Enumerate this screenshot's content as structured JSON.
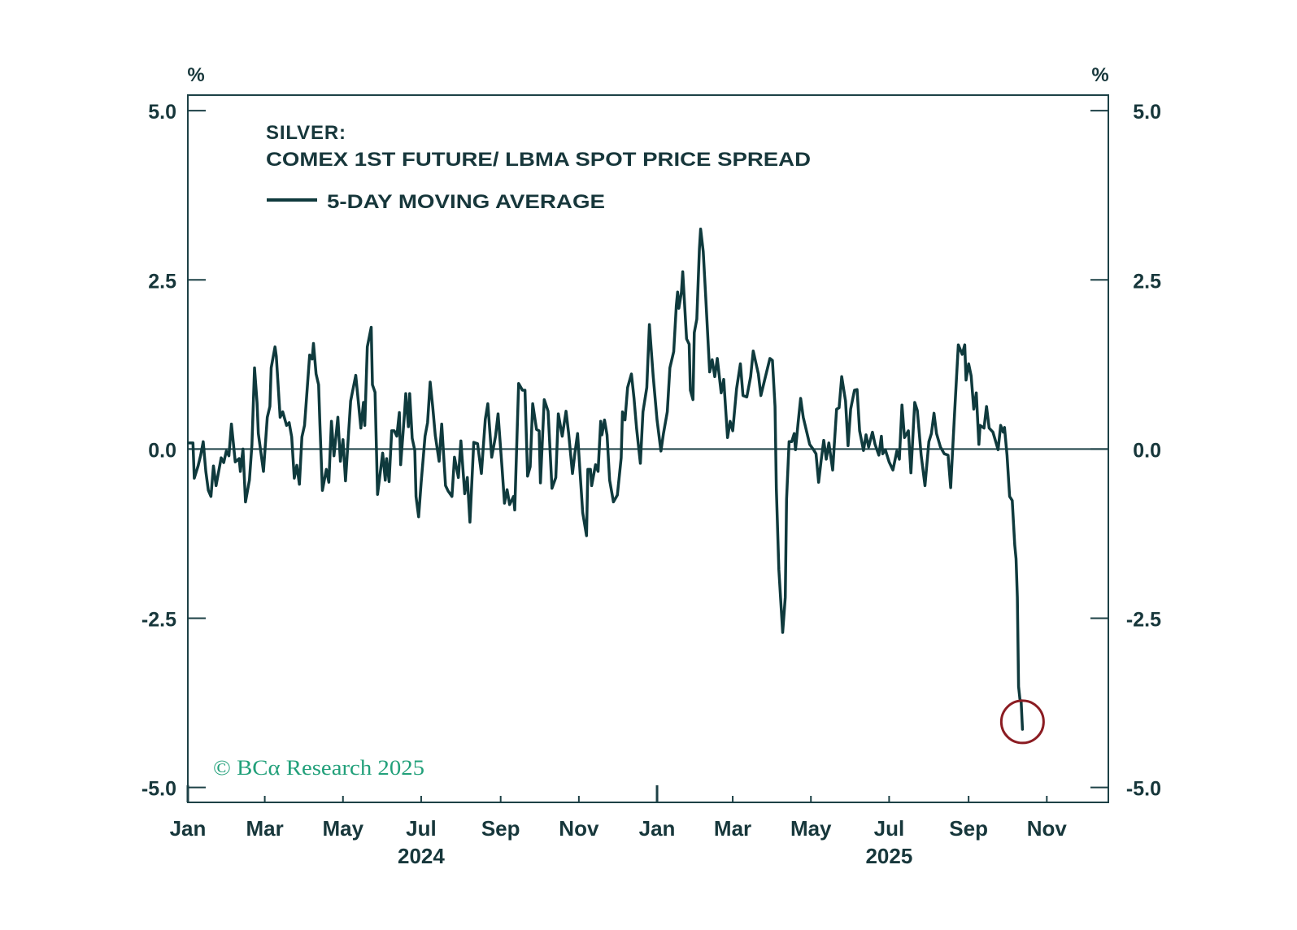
{
  "chart_data": {
    "type": "line",
    "title": "SILVER:",
    "subtitle": "COMEX 1ST FUTURE/ LBMA SPOT PRICE SPREAD",
    "xlabel": "",
    "ylabel_left": "%",
    "ylabel_right": "%",
    "x_unit": "days since 2024-01-01",
    "xlim": [
      0,
      718
    ],
    "ylim": [
      -5.22,
      5.23
    ],
    "grid": false,
    "y_ticks": [
      {
        "value": 5.0,
        "label": "5.0"
      },
      {
        "value": 2.5,
        "label": "2.5"
      },
      {
        "value": 0.0,
        "label": "0.0"
      },
      {
        "value": -2.5,
        "label": "-2.5"
      },
      {
        "value": -5.0,
        "label": "-5.0"
      }
    ],
    "x_ticks": [
      {
        "day": 0,
        "label": "Jan",
        "year_start": true
      },
      {
        "day": 60,
        "label": "Mar"
      },
      {
        "day": 121,
        "label": "May"
      },
      {
        "day": 182,
        "label": "Jul"
      },
      {
        "day": 244,
        "label": "Sep"
      },
      {
        "day": 305,
        "label": "Nov"
      },
      {
        "day": 366,
        "label": "Jan",
        "year_start": true
      },
      {
        "day": 425,
        "label": "Mar"
      },
      {
        "day": 486,
        "label": "May"
      },
      {
        "day": 547,
        "label": "Jul"
      },
      {
        "day": 609,
        "label": "Sep"
      },
      {
        "day": 670,
        "label": "Nov"
      }
    ],
    "x_year_labels": [
      {
        "day": 182,
        "label": "2024"
      },
      {
        "day": 547,
        "label": "2025"
      }
    ],
    "reference_lines": [
      {
        "axis": "y",
        "value": 0
      }
    ],
    "legend": {
      "position": "top-left",
      "entries": [
        {
          "label": "5-DAY MOVING AVERAGE",
          "color": "#0f3a3d"
        }
      ]
    },
    "series": [
      {
        "name": "5-DAY MOVING AVERAGE",
        "color": "#0f3a3d",
        "points": [
          [
            1,
            0.09
          ],
          [
            4,
            0.09
          ],
          [
            5,
            -0.43
          ],
          [
            8,
            -0.25
          ],
          [
            10,
            -0.09
          ],
          [
            12,
            0.11
          ],
          [
            14,
            -0.33
          ],
          [
            16,
            -0.61
          ],
          [
            18,
            -0.7
          ],
          [
            20,
            -0.25
          ],
          [
            22,
            -0.54
          ],
          [
            26,
            -0.13
          ],
          [
            28,
            -0.2
          ],
          [
            30,
            -0.03
          ],
          [
            32,
            -0.1
          ],
          [
            34,
            0.37
          ],
          [
            37,
            -0.19
          ],
          [
            40,
            -0.14
          ],
          [
            41,
            -0.33
          ],
          [
            43,
            0.0
          ],
          [
            45,
            -0.78
          ],
          [
            48,
            -0.46
          ],
          [
            50,
            0.06
          ],
          [
            52,
            1.2
          ],
          [
            54,
            0.69
          ],
          [
            55,
            0.23
          ],
          [
            59,
            -0.33
          ],
          [
            62,
            0.47
          ],
          [
            64,
            0.63
          ],
          [
            65,
            1.2
          ],
          [
            68,
            1.51
          ],
          [
            69,
            1.37
          ],
          [
            72,
            0.47
          ],
          [
            74,
            0.55
          ],
          [
            77,
            0.35
          ],
          [
            79,
            0.39
          ],
          [
            81,
            0.18
          ],
          [
            83,
            -0.43
          ],
          [
            85,
            -0.24
          ],
          [
            87,
            -0.52
          ],
          [
            89,
            0.18
          ],
          [
            91,
            0.35
          ],
          [
            95,
            1.39
          ],
          [
            97,
            1.33
          ],
          [
            98,
            1.56
          ],
          [
            100,
            1.11
          ],
          [
            102,
            0.95
          ],
          [
            103,
            0.37
          ],
          [
            105,
            -0.61
          ],
          [
            108,
            -0.3
          ],
          [
            110,
            -0.49
          ],
          [
            112,
            0.41
          ],
          [
            114,
            -0.1
          ],
          [
            117,
            0.47
          ],
          [
            119,
            -0.18
          ],
          [
            121,
            0.14
          ],
          [
            123,
            -0.47
          ],
          [
            127,
            0.71
          ],
          [
            131,
            1.09
          ],
          [
            135,
            0.31
          ],
          [
            137,
            0.69
          ],
          [
            138,
            0.35
          ],
          [
            140,
            1.51
          ],
          [
            143,
            1.8
          ],
          [
            144,
            0.95
          ],
          [
            146,
            0.84
          ],
          [
            148,
            -0.67
          ],
          [
            152,
            -0.06
          ],
          [
            154,
            -0.46
          ],
          [
            155,
            -0.14
          ],
          [
            157,
            -0.48
          ],
          [
            159,
            0.27
          ],
          [
            161,
            0.27
          ],
          [
            163,
            0.19
          ],
          [
            165,
            0.54
          ],
          [
            166,
            -0.23
          ],
          [
            169,
            0.52
          ],
          [
            170,
            0.82
          ],
          [
            172,
            0.33
          ],
          [
            173,
            0.82
          ],
          [
            175,
            0.16
          ],
          [
            177,
            -0.02
          ],
          [
            178,
            -0.7
          ],
          [
            180,
            -1.0
          ],
          [
            182,
            -0.5
          ],
          [
            185,
            0.19
          ],
          [
            187,
            0.39
          ],
          [
            189,
            0.99
          ],
          [
            191,
            0.63
          ],
          [
            193,
            0.2
          ],
          [
            196,
            -0.18
          ],
          [
            198,
            0.37
          ],
          [
            201,
            -0.54
          ],
          [
            203,
            -0.62
          ],
          [
            206,
            -0.7
          ],
          [
            208,
            -0.12
          ],
          [
            211,
            -0.42
          ],
          [
            213,
            0.12
          ],
          [
            216,
            -0.66
          ],
          [
            218,
            -0.42
          ],
          [
            220,
            -1.08
          ],
          [
            223,
            0.1
          ],
          [
            226,
            0.08
          ],
          [
            229,
            -0.36
          ],
          [
            232,
            0.44
          ],
          [
            234,
            0.67
          ],
          [
            237,
            -0.12
          ],
          [
            240,
            0.19
          ],
          [
            242,
            0.52
          ],
          [
            245,
            -0.26
          ],
          [
            247,
            -0.8
          ],
          [
            249,
            -0.6
          ],
          [
            251,
            -0.82
          ],
          [
            254,
            -0.7
          ],
          [
            255,
            -0.9
          ],
          [
            258,
            0.97
          ],
          [
            261,
            0.87
          ],
          [
            263,
            0.87
          ],
          [
            265,
            -0.4
          ],
          [
            267,
            -0.26
          ],
          [
            269,
            0.67
          ],
          [
            272,
            0.29
          ],
          [
            274,
            0.27
          ],
          [
            275,
            -0.5
          ],
          [
            278,
            0.73
          ],
          [
            281,
            0.56
          ],
          [
            284,
            -0.58
          ],
          [
            287,
            -0.42
          ],
          [
            289,
            0.52
          ],
          [
            292,
            0.19
          ],
          [
            295,
            0.56
          ],
          [
            297,
            0.23
          ],
          [
            300,
            -0.36
          ],
          [
            302,
            -0.05
          ],
          [
            304,
            0.23
          ],
          [
            306,
            -0.36
          ],
          [
            308,
            -0.94
          ],
          [
            311,
            -1.28
          ],
          [
            312,
            -0.3
          ],
          [
            314,
            -0.3
          ],
          [
            315,
            -0.54
          ],
          [
            318,
            -0.23
          ],
          [
            320,
            -0.33
          ],
          [
            322,
            0.41
          ],
          [
            323,
            0.21
          ],
          [
            325,
            0.43
          ],
          [
            327,
            0.21
          ],
          [
            329,
            -0.46
          ],
          [
            332,
            -0.78
          ],
          [
            335,
            -0.68
          ],
          [
            338,
            -0.13
          ],
          [
            339,
            0.55
          ],
          [
            341,
            0.43
          ],
          [
            343,
            0.91
          ],
          [
            346,
            1.11
          ],
          [
            348,
            0.75
          ],
          [
            350,
            0.31
          ],
          [
            353,
            -0.21
          ],
          [
            355,
            0.55
          ],
          [
            358,
            0.91
          ],
          [
            360,
            1.84
          ],
          [
            363,
            1.07
          ],
          [
            366,
            0.43
          ],
          [
            369,
            -0.03
          ],
          [
            371,
            0.23
          ],
          [
            374,
            0.55
          ],
          [
            376,
            1.2
          ],
          [
            379,
            1.44
          ],
          [
            381,
            2.12
          ],
          [
            382,
            2.32
          ],
          [
            383,
            2.08
          ],
          [
            385,
            2.32
          ],
          [
            386,
            2.62
          ],
          [
            389,
            1.63
          ],
          [
            391,
            1.55
          ],
          [
            392,
            0.87
          ],
          [
            394,
            0.73
          ],
          [
            395,
            1.72
          ],
          [
            397,
            1.92
          ],
          [
            399,
            2.96
          ],
          [
            400,
            3.25
          ],
          [
            402,
            2.92
          ],
          [
            404,
            2.24
          ],
          [
            407,
            1.14
          ],
          [
            409,
            1.32
          ],
          [
            411,
            1.07
          ],
          [
            413,
            1.34
          ],
          [
            416,
            0.83
          ],
          [
            418,
            1.03
          ],
          [
            421,
            0.17
          ],
          [
            423,
            0.41
          ],
          [
            425,
            0.27
          ],
          [
            428,
            0.89
          ],
          [
            431,
            1.26
          ],
          [
            433,
            0.79
          ],
          [
            436,
            0.77
          ],
          [
            439,
            1.07
          ],
          [
            441,
            1.45
          ],
          [
            445,
            1.11
          ],
          [
            447,
            0.79
          ],
          [
            450,
            1.03
          ],
          [
            454,
            1.34
          ],
          [
            456,
            1.31
          ],
          [
            458,
            0.63
          ],
          [
            459,
            -0.58
          ],
          [
            461,
            -1.78
          ],
          [
            464,
            -2.71
          ],
          [
            466,
            -2.19
          ],
          [
            467,
            -0.74
          ],
          [
            469,
            0.11
          ],
          [
            471,
            0.11
          ],
          [
            473,
            0.23
          ],
          [
            474,
            -0.01
          ],
          [
            476,
            0.39
          ],
          [
            478,
            0.75
          ],
          [
            480,
            0.47
          ],
          [
            485,
            0.07
          ],
          [
            488,
            -0.01
          ],
          [
            490,
            -0.07
          ],
          [
            492,
            -0.49
          ],
          [
            494,
            -0.17
          ],
          [
            496,
            0.13
          ],
          [
            498,
            -0.15
          ],
          [
            500,
            0.09
          ],
          [
            503,
            -0.31
          ],
          [
            506,
            0.59
          ],
          [
            508,
            0.61
          ],
          [
            510,
            1.07
          ],
          [
            513,
            0.71
          ],
          [
            515,
            0.05
          ],
          [
            517,
            0.59
          ],
          [
            520,
            0.87
          ],
          [
            522,
            0.88
          ],
          [
            524,
            0.27
          ],
          [
            527,
            -0.02
          ],
          [
            529,
            0.21
          ],
          [
            531,
            0.03
          ],
          [
            534,
            0.25
          ],
          [
            536,
            0.07
          ],
          [
            539,
            -0.09
          ],
          [
            541,
            0.19
          ],
          [
            542,
            -0.07
          ],
          [
            544,
            -0.01
          ],
          [
            547,
            -0.19
          ],
          [
            550,
            -0.31
          ],
          [
            553,
            -0.03
          ],
          [
            555,
            -0.15
          ],
          [
            557,
            0.65
          ],
          [
            559,
            0.17
          ],
          [
            562,
            0.27
          ],
          [
            564,
            -0.35
          ],
          [
            567,
            0.69
          ],
          [
            569,
            0.57
          ],
          [
            572,
            -0.09
          ],
          [
            575,
            -0.54
          ],
          [
            578,
            0.11
          ],
          [
            580,
            0.23
          ],
          [
            582,
            0.53
          ],
          [
            584,
            0.23
          ],
          [
            587,
            0.03
          ],
          [
            590,
            -0.07
          ],
          [
            593,
            -0.09
          ],
          [
            595,
            -0.57
          ],
          [
            598,
            0.51
          ],
          [
            601,
            1.54
          ],
          [
            604,
            1.4
          ],
          [
            606,
            1.54
          ],
          [
            607,
            1.02
          ],
          [
            609,
            1.26
          ],
          [
            611,
            1.08
          ],
          [
            613,
            0.59
          ],
          [
            615,
            0.83
          ],
          [
            617,
            0.07
          ],
          [
            618,
            0.35
          ],
          [
            621,
            0.31
          ],
          [
            623,
            0.63
          ],
          [
            625,
            0.31
          ],
          [
            628,
            0.25
          ],
          [
            632,
            -0.01
          ],
          [
            634,
            0.35
          ],
          [
            636,
            0.25
          ],
          [
            637,
            0.32
          ],
          [
            639,
            -0.09
          ],
          [
            641,
            -0.7
          ],
          [
            643,
            -0.76
          ],
          [
            645,
            -1.42
          ],
          [
            646,
            -1.62
          ],
          [
            647,
            -2.19
          ],
          [
            648,
            -3.51
          ],
          [
            649,
            -3.69
          ],
          [
            650,
            -3.74
          ],
          [
            651,
            -4.14
          ]
        ]
      }
    ],
    "annotations": [
      {
        "type": "circle",
        "day": 651,
        "value": -4.03,
        "color": "#8b1c22"
      }
    ]
  },
  "source": {
    "copyright": "© BCα Research 2025",
    "color": "#22a07a"
  },
  "colors": {
    "text": "#17373b",
    "axis": "#1d4146",
    "line": "#0f3a3d"
  }
}
